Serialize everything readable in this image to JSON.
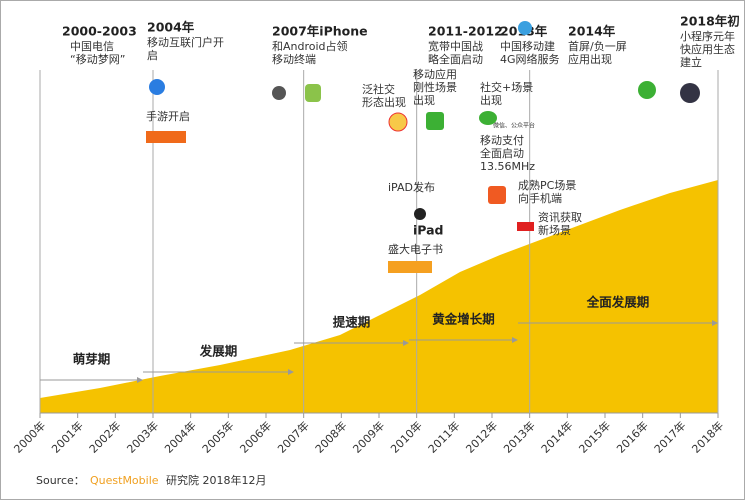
{
  "headings": [
    {
      "title": "2000-2003",
      "lines": [
        "中国电信",
        "“移动梦网”"
      ]
    },
    {
      "title": "2004年",
      "lines": [
        "移动互联门户开",
        "启"
      ]
    },
    {
      "title": "2007年iPhone",
      "lines": [
        "和Android占领",
        "移动终端"
      ]
    },
    {
      "title": "2011-2012",
      "lines": [
        "宽带中国战",
        "略全面启动"
      ]
    },
    {
      "title": "2013年",
      "lines": [
        "中国移动建",
        "4G网络服务"
      ]
    },
    {
      "title": "2014年",
      "lines": [
        "首屏/负一屏",
        "应用出现"
      ]
    },
    {
      "title": "2018年初",
      "lines": [
        "小程序元年",
        "快应用生态",
        "建立"
      ]
    }
  ],
  "notes": [
    {
      "lines": [
        "手游开启"
      ]
    },
    {
      "lines": [
        "泛社交",
        "形态出现"
      ]
    },
    {
      "lines": [
        "移动应用",
        "刚性场景",
        "出现"
      ]
    },
    {
      "lines": [
        "社交+场景",
        "出现"
      ]
    },
    {
      "lines": [
        "微信、公众平台"
      ]
    },
    {
      "lines": [
        "移动支付",
        "全面启动",
        "13.56MHz"
      ]
    },
    {
      "lines": [
        "iPAD发布"
      ]
    },
    {
      "lines": [
        "iPad"
      ]
    },
    {
      "lines": [
        "盛大电子书"
      ]
    },
    {
      "lines": [
        "成熟PC场景",
        "向手机端"
      ]
    },
    {
      "lines": [
        "资讯获取",
        "新场景"
      ]
    }
  ],
  "phases": [
    "萌芽期",
    "发展期",
    "提速期",
    "黄金增长期",
    "全面发展期"
  ],
  "years": [
    "2000年",
    "2001年",
    "2002年",
    "2003年",
    "2004年",
    "2005年",
    "2006年",
    "2007年",
    "2008年",
    "2009年",
    "2010年",
    "2011年",
    "2012年",
    "2013年",
    "2014年",
    "2015年",
    "2016年",
    "2017年",
    "2018年"
  ],
  "source": {
    "label": "Source：",
    "brand": "QuestMobile",
    "rest": "研究院 2018年12月"
  }
}
